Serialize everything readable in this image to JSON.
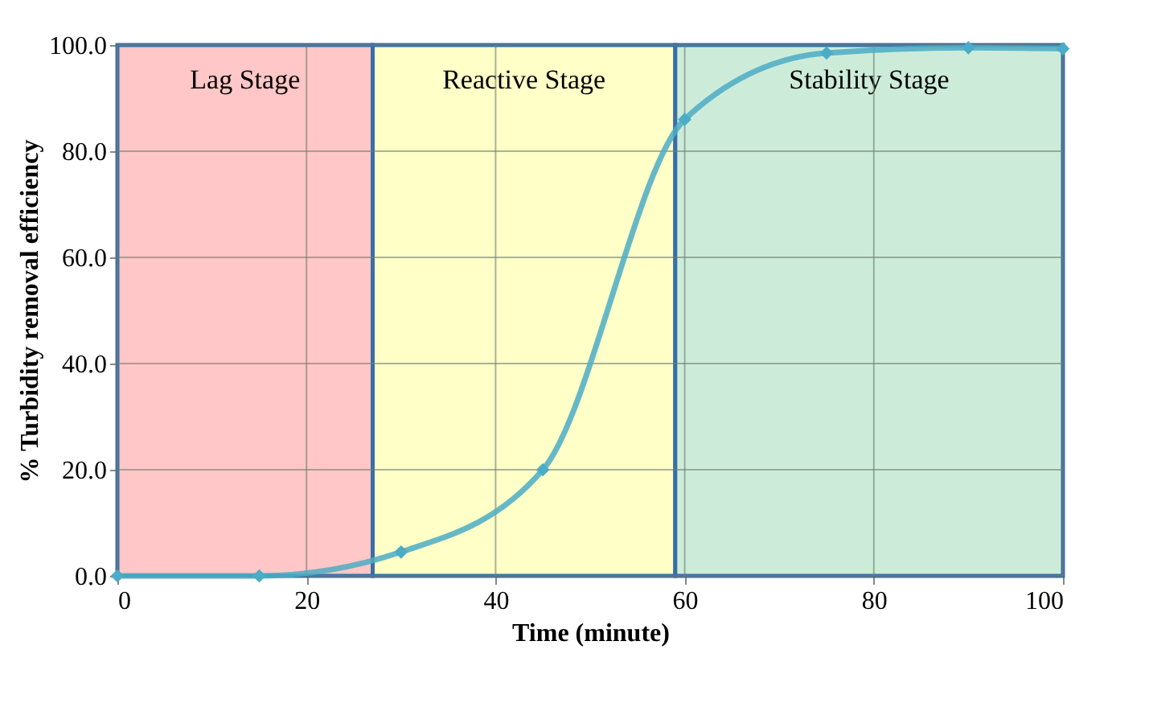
{
  "chart_data": {
    "type": "line",
    "xlabel": "Time (minute)",
    "ylabel": "% Turbidity removal efficiency",
    "x": [
      0,
      15,
      30,
      45,
      60,
      75,
      90,
      100
    ],
    "series": [
      {
        "color": "#4bacc6",
        "values": [
          0,
          0,
          4.5,
          20,
          86,
          98.5,
          99.5,
          99.3
        ]
      }
    ],
    "marker": "diamond",
    "line_style": "solid",
    "grid": true,
    "xlim": [
      0,
      100
    ],
    "xticks": [
      0,
      20,
      40,
      60,
      80,
      100
    ],
    "ylim": [
      0,
      100
    ],
    "yticks": [
      {
        "value": 0,
        "label": "0.0"
      },
      {
        "value": 20,
        "label": "20.0"
      },
      {
        "value": 40,
        "label": "40.0"
      },
      {
        "value": 60,
        "label": "60.0"
      },
      {
        "value": 80,
        "label": "80.0"
      },
      {
        "value": 100,
        "label": "100.0"
      }
    ],
    "bands": [
      {
        "axis": "x",
        "from": 0,
        "to": 27,
        "label": "Lag Stage",
        "color": "#ffc7c7"
      },
      {
        "axis": "x",
        "from": 27,
        "to": 59,
        "label": "Reactive Stage",
        "color": "#ffffc8"
      },
      {
        "axis": "x",
        "from": 59,
        "to": 100,
        "label": "Stability Stage",
        "color": "#ccecd9"
      }
    ]
  }
}
